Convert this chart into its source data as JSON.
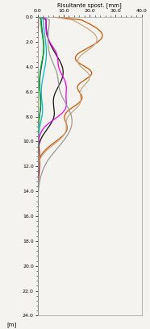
{
  "title": "Risultante spost. [mm]",
  "xlabel": "[m]",
  "xlim": [
    0,
    40
  ],
  "ylim": [
    24,
    0
  ],
  "xticks": [
    0.0,
    10.0,
    20.0,
    30.0,
    40.0
  ],
  "yticks": [
    0.0,
    2.0,
    4.0,
    6.0,
    8.0,
    10.0,
    12.0,
    14.0,
    16.0,
    18.0,
    20.0,
    22.0,
    24.0
  ],
  "background": "#f5f3ef",
  "lines": [
    {
      "color": "#8b1a1a",
      "lw": 0.9
    },
    {
      "color": "#cc5500",
      "lw": 0.9
    },
    {
      "color": "#c8a882",
      "lw": 0.9
    },
    {
      "color": "#111111",
      "lw": 0.9
    },
    {
      "color": "#00bbbb",
      "lw": 0.9
    },
    {
      "color": "#2222cc",
      "lw": 0.9
    },
    {
      "color": "#ee00ee",
      "lw": 0.9
    },
    {
      "color": "#999999",
      "lw": 0.9
    },
    {
      "color": "#00bb00",
      "lw": 0.9
    }
  ]
}
